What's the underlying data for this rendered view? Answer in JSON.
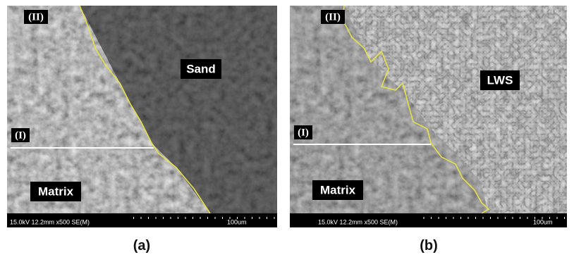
{
  "panels": [
    {
      "caption": "(a)",
      "labels": {
        "upper": "(II)",
        "lower": "(I)",
        "phase": "Sand",
        "matrix": "Matrix"
      },
      "info": "15.0kV 12.2mm x500 SE(M)",
      "scale": "100um"
    },
    {
      "caption": "(b)",
      "labels": {
        "upper": "(II)",
        "lower": "(I)",
        "phase": "LWS",
        "matrix": "Matrix"
      },
      "info": "15.0kV 12.2mm x500 SE(M)",
      "scale": "100um"
    }
  ]
}
